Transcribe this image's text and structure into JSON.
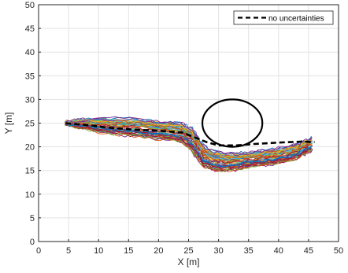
{
  "chart_data": {
    "type": "line",
    "xlabel": "X [m]",
    "ylabel": "Y [m]",
    "xlim": [
      0,
      50
    ],
    "ylim": [
      0,
      50
    ],
    "xticks": [
      0,
      5,
      10,
      15,
      20,
      25,
      30,
      35,
      40,
      45,
      50
    ],
    "yticks": [
      0,
      5,
      10,
      15,
      20,
      25,
      30,
      35,
      40,
      45,
      50
    ],
    "grid": true,
    "legend": {
      "position": "top-right",
      "entries": [
        "no uncertainties"
      ]
    },
    "nominal": {
      "name": "no uncertainties",
      "color": "#000000",
      "style": "dashed",
      "x": [
        4.5,
        8,
        12,
        16,
        20,
        24,
        26,
        28,
        30,
        33,
        36,
        40,
        44,
        46
      ],
      "y": [
        25.0,
        24.6,
        24.0,
        23.6,
        23.4,
        23.0,
        22.0,
        21.0,
        20.3,
        20.3,
        20.6,
        20.9,
        21.1,
        21.0
      ]
    },
    "obstacle": {
      "shape": "ellipse",
      "center": [
        32.3,
        25.0
      ],
      "radius_x": 5.0,
      "radius_y": 5.0,
      "color": "#000000"
    },
    "monte_carlo": {
      "count": 60,
      "colors": [
        "#0072bd",
        "#d95319",
        "#edb120",
        "#7e2f8e",
        "#77ac30",
        "#4dbeee",
        "#a2142f"
      ],
      "mean_path": {
        "x": [
          4.5,
          7,
          10,
          13,
          16,
          19,
          22,
          24,
          25.5,
          26.5,
          27.5,
          29,
          31,
          33,
          35,
          37,
          39,
          41,
          43,
          44.5,
          45.5
        ],
        "y": [
          25.0,
          24.8,
          24.5,
          24.3,
          24.1,
          23.6,
          23.3,
          22.8,
          21.6,
          19.8,
          18.0,
          17.1,
          16.8,
          16.9,
          17.3,
          17.6,
          17.9,
          18.3,
          19.0,
          20.0,
          20.5
        ]
      },
      "spread": [
        0.2,
        0.6,
        0.9,
        1.1,
        1.2,
        1.2,
        1.2,
        1.3,
        1.5,
        1.5,
        1.4,
        1.3,
        1.2,
        1.1,
        1.0,
        1.0,
        1.0,
        1.0,
        1.0,
        0.9,
        0.9
      ]
    }
  }
}
